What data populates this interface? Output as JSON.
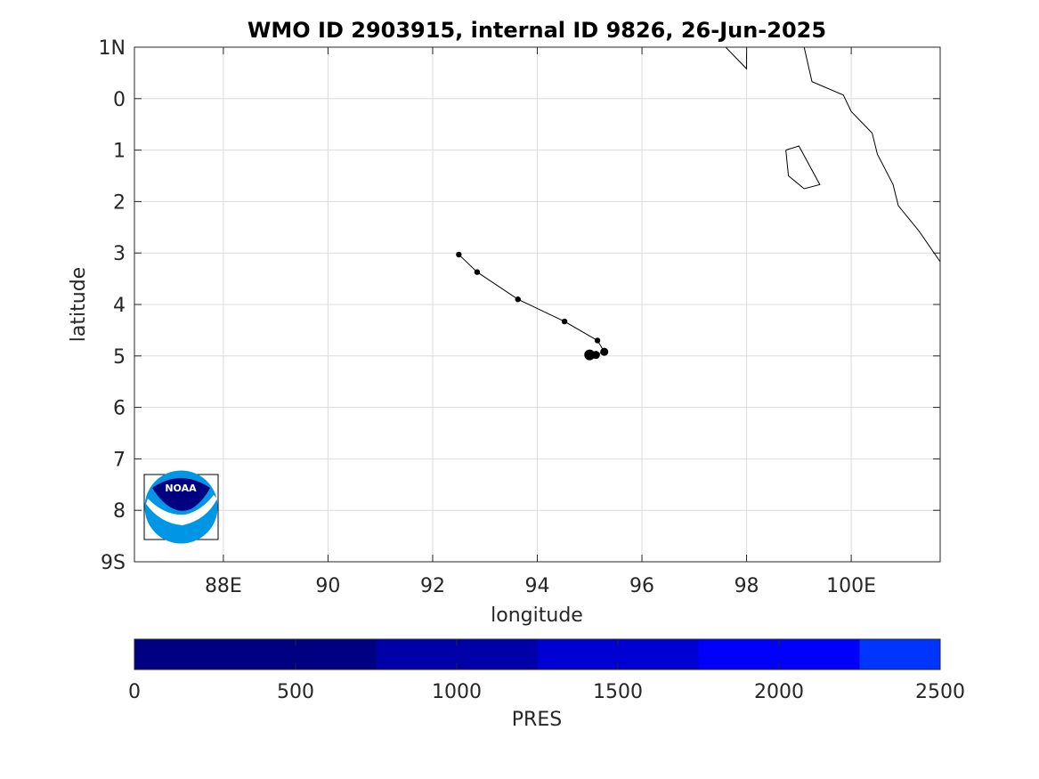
{
  "title": "WMO ID 2903915, internal ID 9826, 26-Jun-2025",
  "map": {
    "xlabel": "longitude",
    "ylabel": "latitude",
    "xlim": [
      86.3,
      101.7
    ],
    "ylim_north_positive": [
      -9,
      1
    ],
    "grid": true,
    "x_ticks": [
      {
        "value": 88,
        "label": "88E"
      },
      {
        "value": 90,
        "label": "90"
      },
      {
        "value": 92,
        "label": "92"
      },
      {
        "value": 94,
        "label": "94"
      },
      {
        "value": 96,
        "label": "96"
      },
      {
        "value": 98,
        "label": "98"
      },
      {
        "value": 100,
        "label": "100E"
      }
    ],
    "y_ticks": [
      {
        "value": 1,
        "label": "1N"
      },
      {
        "value": 0,
        "label": "0"
      },
      {
        "value": -1,
        "label": "1"
      },
      {
        "value": -2,
        "label": "2"
      },
      {
        "value": -3,
        "label": "3"
      },
      {
        "value": -4,
        "label": "4"
      },
      {
        "value": -5,
        "label": "5"
      },
      {
        "value": -6,
        "label": "6"
      },
      {
        "value": -7,
        "label": "7"
      },
      {
        "value": -8,
        "label": "8"
      },
      {
        "value": -9,
        "label": "9S"
      }
    ],
    "coastlines": [
      [
        [
          97.6,
          1.0
        ],
        [
          98.0,
          0.58
        ],
        [
          98.0,
          1.0
        ]
      ],
      [
        [
          99.1,
          1.0
        ],
        [
          99.25,
          0.33
        ],
        [
          99.85,
          0.07
        ],
        [
          100.0,
          -0.25
        ],
        [
          100.4,
          -0.67
        ],
        [
          100.5,
          -1.08
        ],
        [
          100.8,
          -1.67
        ],
        [
          100.9,
          -2.08
        ],
        [
          101.3,
          -2.58
        ],
        [
          101.7,
          -3.17
        ]
      ],
      [
        [
          98.75,
          -1.0
        ],
        [
          99.0,
          -0.92
        ],
        [
          99.4,
          -1.67
        ],
        [
          99.1,
          -1.75
        ],
        [
          98.8,
          -1.5
        ],
        [
          98.75,
          -1.0
        ]
      ]
    ],
    "logo_text": "NOAA"
  },
  "chart_data": {
    "type": "scatter",
    "x_label": "longitude",
    "y_label": "latitude",
    "track": [
      {
        "lon": 92.5,
        "lat": -3.03
      },
      {
        "lon": 92.85,
        "lat": -3.37
      },
      {
        "lon": 93.63,
        "lat": -3.9
      },
      {
        "lon": 94.52,
        "lat": -4.33
      },
      {
        "lon": 95.15,
        "lat": -4.7
      },
      {
        "lon": 95.28,
        "lat": -4.92
      },
      {
        "lon": 95.12,
        "lat": -4.98
      },
      {
        "lon": 95.0,
        "lat": -4.98
      }
    ],
    "colorbar": {
      "label": "PRES",
      "range": [
        0,
        2500
      ],
      "tick_values": [
        0,
        500,
        1000,
        1500,
        2000,
        2500
      ],
      "segments": [
        {
          "from": 0,
          "to": 750,
          "color": "#000080"
        },
        {
          "from": 750,
          "to": 1250,
          "color": "#0000a8"
        },
        {
          "from": 1250,
          "to": 1750,
          "color": "#0000d2"
        },
        {
          "from": 1750,
          "to": 2250,
          "color": "#0000fb"
        },
        {
          "from": 2250,
          "to": 2500,
          "color": "#0035ff"
        }
      ]
    }
  }
}
